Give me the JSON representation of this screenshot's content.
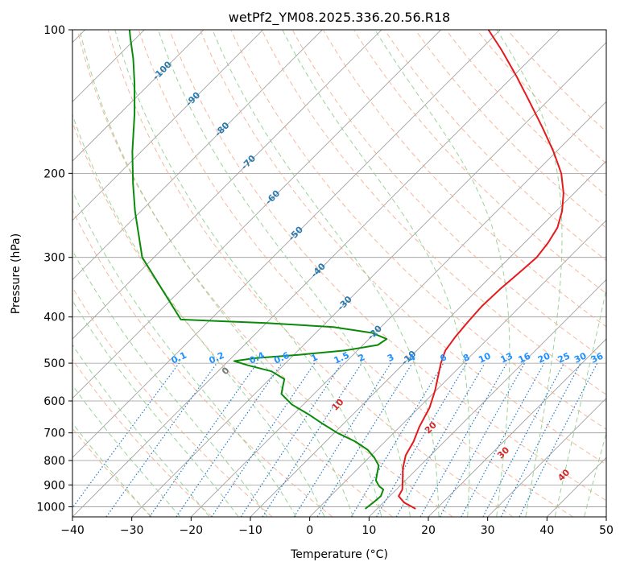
{
  "chart_data": {
    "type": "line",
    "title": "wetPf2_YM08.2025.336.20.56.R18",
    "xlabel": "Temperature (°C)",
    "ylabel": "Pressure (hPa)",
    "xlim": [
      -40,
      50
    ],
    "ylim": [
      1050,
      100
    ],
    "y_scale": "log",
    "x_ticks": [
      -40,
      -30,
      -20,
      -10,
      0,
      10,
      20,
      30,
      40,
      50
    ],
    "x_tick_labels": [
      "−40",
      "−30",
      "−20",
      "−10",
      "0",
      "10",
      "20",
      "30",
      "40",
      "50"
    ],
    "y_ticks": [
      100,
      200,
      300,
      400,
      500,
      600,
      700,
      800,
      900,
      1000
    ],
    "y_tick_labels": [
      "100",
      "200",
      "300",
      "400",
      "500",
      "600",
      "700",
      "800",
      "900",
      "1000"
    ],
    "grid": true,
    "colors": {
      "temperature": "#e41a1c",
      "dewpoint": "#0a8a0a",
      "isotherm_grid": "#999999",
      "dry_adiabat": "#f4a582",
      "moist_adiabat": "#8fce8f",
      "mixing_ratio": "#1e78c8",
      "isotherm_label": "#2a7ab0",
      "mixing_label": "#1e90ff",
      "moist_label": "#d62728"
    },
    "series": [
      {
        "key": "temperature",
        "points": [
          {
            "p": 1010,
            "t": 16.5
          },
          {
            "p": 980,
            "t": 13.5
          },
          {
            "p": 950,
            "t": 11.5
          },
          {
            "p": 920,
            "t": 11.0
          },
          {
            "p": 880,
            "t": 9.5
          },
          {
            "p": 830,
            "t": 7.5
          },
          {
            "p": 780,
            "t": 5.8
          },
          {
            "p": 730,
            "t": 4.8
          },
          {
            "p": 680,
            "t": 3.3
          },
          {
            "p": 620,
            "t": 1.8
          },
          {
            "p": 570,
            "t": -0.2
          },
          {
            "p": 530,
            "t": -2.2
          },
          {
            "p": 500,
            "t": -3.8
          },
          {
            "p": 470,
            "t": -5.2
          },
          {
            "p": 440,
            "t": -5.8
          },
          {
            "p": 410,
            "t": -6.2
          },
          {
            "p": 380,
            "t": -6.5
          },
          {
            "p": 350,
            "t": -6.3
          },
          {
            "p": 320,
            "t": -5.8
          },
          {
            "p": 300,
            "t": -5.5
          },
          {
            "p": 280,
            "t": -6.0
          },
          {
            "p": 260,
            "t": -7.0
          },
          {
            "p": 240,
            "t": -9.0
          },
          {
            "p": 220,
            "t": -11.8
          },
          {
            "p": 200,
            "t": -15.5
          },
          {
            "p": 180,
            "t": -20.5
          },
          {
            "p": 160,
            "t": -26.5
          },
          {
            "p": 140,
            "t": -33.5
          },
          {
            "p": 125,
            "t": -39.5
          },
          {
            "p": 110,
            "t": -46.5
          },
          {
            "p": 100,
            "t": -52.0
          }
        ]
      },
      {
        "key": "dewpoint",
        "points": [
          {
            "p": 1010,
            "t": 8.0
          },
          {
            "p": 980,
            "t": 8.3
          },
          {
            "p": 950,
            "t": 8.5
          },
          {
            "p": 920,
            "t": 7.8
          },
          {
            "p": 905,
            "t": 6.5
          },
          {
            "p": 880,
            "t": 5.0
          },
          {
            "p": 850,
            "t": 4.0
          },
          {
            "p": 820,
            "t": 3.0
          },
          {
            "p": 790,
            "t": 1.0
          },
          {
            "p": 760,
            "t": -1.5
          },
          {
            "p": 730,
            "t": -5.0
          },
          {
            "p": 700,
            "t": -9.5
          },
          {
            "p": 670,
            "t": -13.5
          },
          {
            "p": 640,
            "t": -17.5
          },
          {
            "p": 610,
            "t": -22.0
          },
          {
            "p": 580,
            "t": -25.5
          },
          {
            "p": 560,
            "t": -26.5
          },
          {
            "p": 540,
            "t": -27.5
          },
          {
            "p": 520,
            "t": -31.0
          },
          {
            "p": 505,
            "t": -36.0
          },
          {
            "p": 495,
            "t": -39.0
          },
          {
            "p": 488,
            "t": -36.0
          },
          {
            "p": 480,
            "t": -29.0
          },
          {
            "p": 470,
            "t": -22.0
          },
          {
            "p": 458,
            "t": -17.5
          },
          {
            "p": 445,
            "t": -17.0
          },
          {
            "p": 432,
            "t": -20.5
          },
          {
            "p": 420,
            "t": -28.0
          },
          {
            "p": 412,
            "t": -40.0
          },
          {
            "p": 405,
            "t": -55.0
          },
          {
            "p": 300,
            "t": -72.0
          },
          {
            "p": 240,
            "t": -81.0
          },
          {
            "p": 210,
            "t": -86.0
          },
          {
            "p": 180,
            "t": -91.5
          },
          {
            "p": 150,
            "t": -97.5
          },
          {
            "p": 130,
            "t": -102.5
          },
          {
            "p": 115,
            "t": -107.0
          },
          {
            "p": 104,
            "t": -111.0
          },
          {
            "p": 100,
            "t": -112.5
          }
        ]
      }
    ],
    "isotherm_labels": [
      {
        "t": -100,
        "p": 122,
        "text": "-100"
      },
      {
        "t": -90,
        "p": 140,
        "text": "-90"
      },
      {
        "t": -80,
        "p": 162,
        "text": "-80"
      },
      {
        "t": -70,
        "p": 190,
        "text": "-70"
      },
      {
        "t": -60,
        "p": 225,
        "text": "-60"
      },
      {
        "t": -50,
        "p": 268,
        "text": "-50"
      },
      {
        "t": -40,
        "p": 320,
        "text": "-40"
      },
      {
        "t": -30,
        "p": 375,
        "text": "-30"
      },
      {
        "t": -20,
        "p": 432,
        "text": "-20"
      },
      {
        "t": -10,
        "p": 488,
        "text": "-10"
      }
    ],
    "mixing_ratio_labels": [
      "0.1",
      "0.2",
      "0.4",
      "0.6",
      "1",
      "1.5",
      "2",
      "3",
      "4",
      "6",
      "8",
      "10",
      "13",
      "16",
      "20",
      "25",
      "30",
      "36"
    ],
    "mixing_ratio_values": [
      0.1,
      0.2,
      0.4,
      0.6,
      1,
      1.5,
      2,
      3,
      4,
      6,
      8,
      10,
      13,
      16,
      20,
      25,
      30,
      36
    ],
    "moist_adiabat_labels": [
      {
        "theta": 0,
        "text": "0"
      },
      {
        "theta": 10,
        "text": "10"
      },
      {
        "theta": 20,
        "text": "20"
      },
      {
        "theta": 30,
        "text": "30"
      },
      {
        "theta": 40,
        "text": "40"
      }
    ]
  }
}
